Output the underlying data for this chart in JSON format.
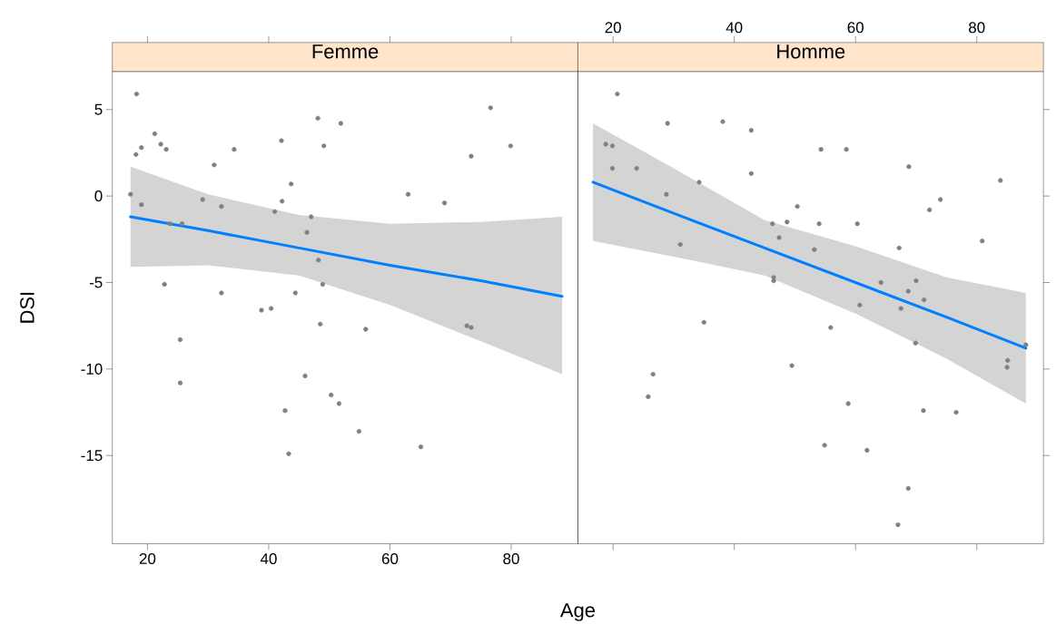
{
  "chart_data": [
    {
      "type": "scatter",
      "title": "Femme",
      "xlabel": "Age",
      "ylabel": "DSI",
      "xlim": [
        14.2,
        91
      ],
      "ylim": [
        -20.1,
        7.2
      ],
      "xticks": [
        20,
        40,
        60,
        80
      ],
      "yticks": [
        -15,
        -10,
        -5,
        0,
        5
      ],
      "series": [
        {
          "marker": "circle",
          "color": "#808080",
          "x": [
            18.2,
            18.1,
            19.0,
            17.2,
            19.0,
            21.2,
            22.2,
            23.1,
            23.7,
            25.7,
            22.8,
            31.0,
            34.3,
            29.1,
            32.2,
            32.2,
            38.8,
            40.4,
            42.1,
            42.2,
            41.0,
            43.7,
            48.1,
            49.1,
            51.9,
            47.0,
            46.3,
            48.2,
            48.9,
            44.4,
            48.5,
            56.0,
            25.4,
            25.4,
            46.0,
            50.3,
            51.6,
            42.7,
            54.9,
            65.1,
            43.3,
            72.7,
            73.4,
            63.0,
            69.0,
            73.4,
            76.6,
            79.9
          ],
          "values": [
            5.9,
            2.4,
            2.8,
            0.1,
            -0.5,
            3.6,
            3.0,
            2.7,
            -1.6,
            -1.6,
            -5.1,
            1.8,
            2.7,
            -0.2,
            -0.6,
            -5.6,
            -6.6,
            -6.5,
            3.2,
            -0.3,
            -0.9,
            0.7,
            4.5,
            2.9,
            4.2,
            -1.2,
            -2.1,
            -3.7,
            -5.1,
            -5.6,
            -7.4,
            -7.7,
            -8.3,
            -10.8,
            -10.4,
            -11.5,
            -12.0,
            -12.4,
            -13.6,
            -14.5,
            -14.9,
            -7.5,
            -7.6,
            0.1,
            -0.4,
            2.3,
            5.1,
            2.9
          ]
        },
        {
          "type": "line",
          "color": "#0080ff",
          "x": [
            17.2,
            30,
            45,
            60,
            75,
            88.4
          ],
          "values": [
            -1.2,
            -2.0,
            -3.0,
            -4.0,
            -4.9,
            -5.8
          ],
          "lower": [
            -4.1,
            -4.0,
            -4.6,
            -6.3,
            -8.4,
            -10.3
          ],
          "upper": [
            1.7,
            0.1,
            -1.1,
            -1.6,
            -1.5,
            -1.2
          ]
        }
      ]
    },
    {
      "type": "scatter",
      "title": "Homme",
      "xlim": [
        14.2,
        91
      ],
      "ylim": [
        -20.1,
        7.2
      ],
      "xticks": [
        20,
        40,
        60,
        80
      ],
      "yticks": [
        -15,
        -10,
        -5,
        0,
        5
      ],
      "tick_labels": "x",
      "series": [
        {
          "marker": "circle",
          "color": "#808080",
          "x": [
            20.7,
            18.8,
            19.9,
            19.9,
            23.9,
            29.0,
            28.8,
            31.1,
            34.2,
            38.1,
            42.8,
            42.8,
            54.3,
            58.5,
            68.8,
            83.9,
            50.4,
            48.7,
            46.3,
            54.0,
            60.3,
            47.4,
            53.2,
            67.2,
            74.0,
            72.2,
            80.9,
            46.5,
            46.5,
            64.2,
            70.0,
            68.7,
            71.3,
            60.7,
            67.5,
            35.0,
            55.9,
            69.9,
            88.1,
            85.1,
            85.0,
            49.5,
            26.6,
            25.8,
            58.8,
            71.2,
            76.6,
            54.9,
            61.9,
            68.7,
            67.0
          ],
          "values": [
            5.9,
            3.0,
            2.9,
            1.6,
            1.6,
            4.2,
            0.1,
            -2.8,
            0.8,
            4.3,
            3.8,
            1.3,
            2.7,
            2.7,
            1.7,
            0.9,
            -0.6,
            -1.5,
            -1.6,
            -1.6,
            -1.6,
            -2.4,
            -3.1,
            -3.0,
            -0.2,
            -0.8,
            -2.6,
            -4.7,
            -4.9,
            -5.0,
            -4.9,
            -5.5,
            -6.0,
            -6.3,
            -6.5,
            -7.3,
            -7.6,
            -8.5,
            -8.6,
            -9.5,
            -9.9,
            -9.8,
            -10.3,
            -11.6,
            -12.0,
            -12.4,
            -12.5,
            -14.4,
            -14.7,
            -16.9,
            -19.0
          ]
        },
        {
          "type": "line",
          "color": "#0080ff",
          "x": [
            16.7,
            30,
            45,
            60,
            75,
            88.1
          ],
          "values": [
            0.8,
            -1.0,
            -3.0,
            -5.0,
            -7.0,
            -8.8
          ],
          "lower": [
            -2.6,
            -3.5,
            -4.6,
            -6.8,
            -9.4,
            -12.0
          ],
          "upper": [
            4.2,
            1.6,
            -1.4,
            -2.9,
            -4.7,
            -5.6
          ]
        }
      ]
    }
  ]
}
